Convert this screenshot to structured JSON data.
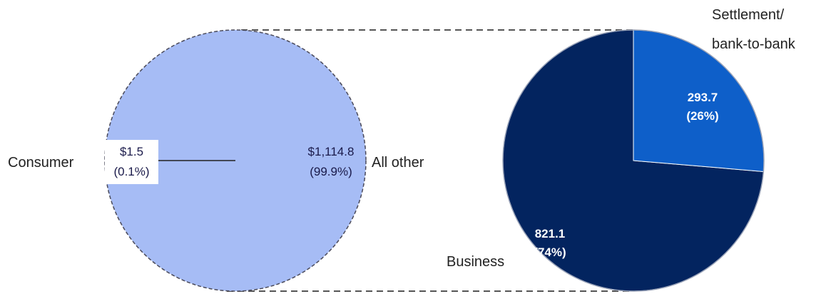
{
  "chart_data": [
    {
      "type": "pie",
      "slices": [
        {
          "label": "Consumer",
          "value": 1.5,
          "value_label": "$1.5",
          "percent_label": "(0.1%)"
        },
        {
          "label": "All other",
          "value": 1114.8,
          "value_label": "$1,114.8",
          "percent_label": "(99.9%)"
        }
      ],
      "colors": {
        "all_other": "#a6bcf5",
        "consumer_box": "#ffffff",
        "outline": "#4a4a5a"
      }
    },
    {
      "type": "pie",
      "slices": [
        {
          "label": "Settlement/ bank-to-bank",
          "label_lines": [
            "Settlement/",
            "bank-to-bank"
          ],
          "value": 293.7,
          "value_label": "293.7",
          "percent_label": "(26%)",
          "color": "#0e5fc9"
        },
        {
          "label": "Business",
          "value": 821.1,
          "value_label": "821.1",
          "percent_label": "(74%)",
          "color": "#03245f"
        }
      ],
      "outline": "#9aa3b8"
    }
  ]
}
